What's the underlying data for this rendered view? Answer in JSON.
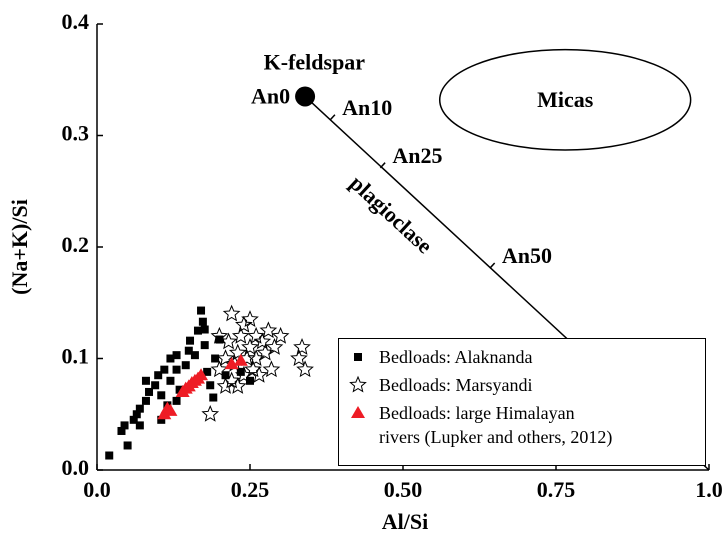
{
  "chart_data": {
    "type": "scatter",
    "x_label": "Al/Si",
    "y_label": "(Na+K)/Si",
    "xlim": [
      0,
      1
    ],
    "ylim": [
      0,
      0.4
    ],
    "xticks": [
      {
        "value": 0,
        "label": "0.0"
      },
      0.25,
      {
        "value": 0.5,
        "label": "0.50"
      },
      0.75,
      {
        "value": 1,
        "label": "1.0"
      }
    ],
    "yticks": [
      {
        "value": 0,
        "label": "0.0"
      },
      0.1,
      0.2,
      0.3,
      0.4
    ],
    "legend": "lower right",
    "series": [
      {
        "name": "Bedloads: Alaknanda",
        "color": "#000000",
        "marker": "square",
        "x": [
          0.02,
          0.04,
          0.045,
          0.05,
          0.06,
          0.065,
          0.07,
          0.07,
          0.08,
          0.085,
          0.08,
          0.095,
          0.1,
          0.105,
          0.11,
          0.12,
          0.12,
          0.13,
          0.13,
          0.135,
          0.145,
          0.15,
          0.152,
          0.16,
          0.165,
          0.17,
          0.173,
          0.176,
          0.18,
          0.185,
          0.19,
          0.193,
          0.2,
          0.21,
          0.235,
          0.25,
          0.105,
          0.115,
          0.13,
          0.176
        ],
        "values": [
          0.013,
          0.035,
          0.04,
          0.022,
          0.045,
          0.05,
          0.04,
          0.055,
          0.062,
          0.07,
          0.08,
          0.076,
          0.085,
          0.067,
          0.09,
          0.08,
          0.1,
          0.103,
          0.09,
          0.072,
          0.094,
          0.107,
          0.116,
          0.103,
          0.125,
          0.143,
          0.133,
          0.112,
          0.088,
          0.076,
          0.065,
          0.1,
          0.117,
          0.085,
          0.088,
          0.08,
          0.045,
          0.058,
          0.062,
          0.126
        ]
      },
      {
        "name": "Bedloads: Marsyandi",
        "color": "#000000",
        "marker": "star",
        "x": [
          0.185,
          0.2,
          0.21,
          0.21,
          0.215,
          0.22,
          0.22,
          0.225,
          0.23,
          0.235,
          0.24,
          0.24,
          0.245,
          0.25,
          0.25,
          0.255,
          0.26,
          0.26,
          0.265,
          0.27,
          0.275,
          0.28,
          0.285,
          0.29,
          0.3,
          0.33,
          0.34,
          0.335,
          0.23,
          0.2
        ],
        "values": [
          0.05,
          0.09,
          0.1,
          0.075,
          0.115,
          0.08,
          0.14,
          0.095,
          0.105,
          0.12,
          0.085,
          0.13,
          0.1,
          0.11,
          0.135,
          0.09,
          0.12,
          0.1,
          0.085,
          0.115,
          0.105,
          0.125,
          0.09,
          0.11,
          0.12,
          0.1,
          0.09,
          0.11,
          0.075,
          0.12
        ]
      },
      {
        "name": "Bedloads: large Himalayan rivers (Lupker and others, 2012)",
        "color": "#ee1c25",
        "marker": "triangle",
        "x": [
          0.11,
          0.115,
          0.12,
          0.14,
          0.145,
          0.15,
          0.155,
          0.16,
          0.165,
          0.17,
          0.22,
          0.235
        ],
        "values": [
          0.05,
          0.055,
          0.053,
          0.07,
          0.073,
          0.075,
          0.078,
          0.08,
          0.082,
          0.085,
          0.095,
          0.098
        ]
      }
    ],
    "endmember": {
      "label": "K-feldspar",
      "sublabel": "An0",
      "x": 0.34,
      "y": 0.335
    },
    "reference_line": {
      "label": "plagioclase",
      "x": [
        0.34,
        1
      ],
      "y": [
        0.335,
        0
      ],
      "ticks": [
        {
          "label": "An10",
          "x": 0.381,
          "y": 0.314
        },
        {
          "label": "An25",
          "x": 0.463,
          "y": 0.271
        },
        {
          "label": "An50",
          "x": 0.642,
          "y": 0.181
        }
      ]
    },
    "region": {
      "label": "Micas",
      "x": [
        0.56,
        0.97
      ],
      "y": [
        0.287,
        0.377
      ]
    }
  }
}
